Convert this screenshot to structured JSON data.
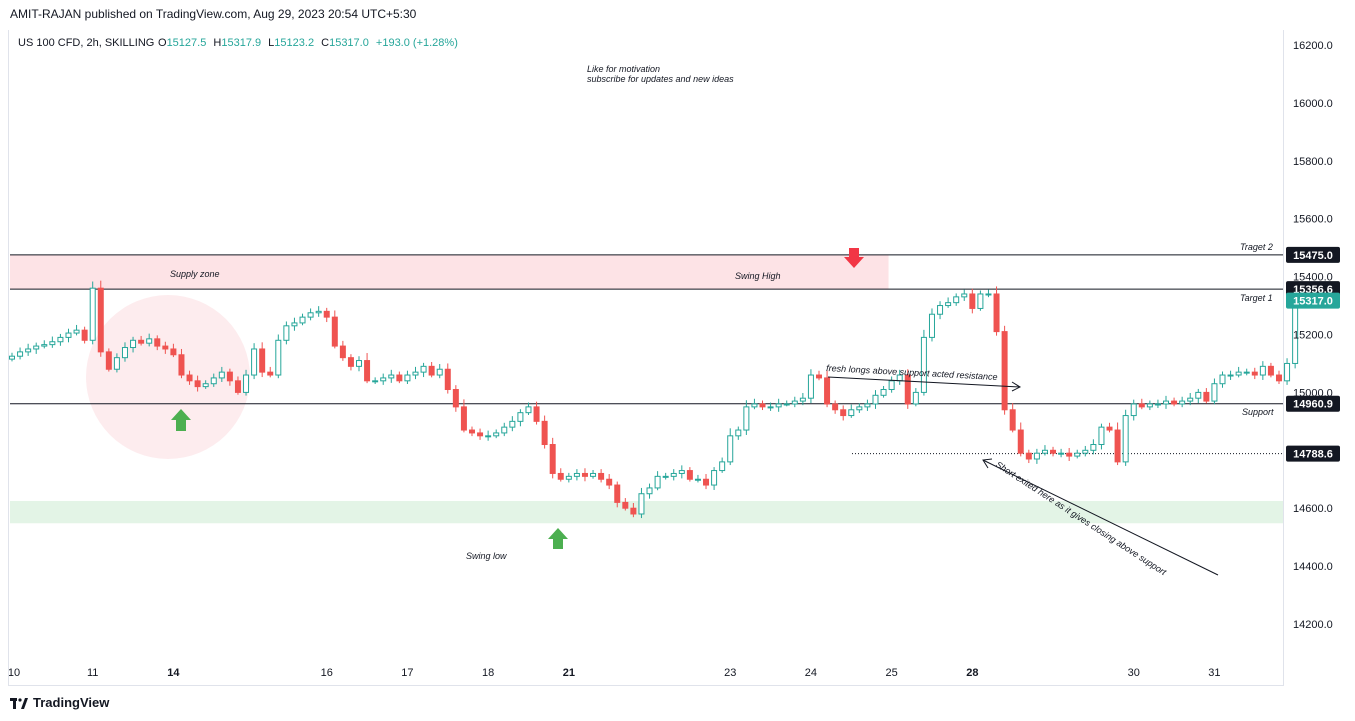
{
  "publisher": "AMIT-RAJAN published on TradingView.com, Aug 29, 2023 20:54 UTC+5:30",
  "brand": "TradingView",
  "colors": {
    "up": "#26a69a",
    "down": "#ef5350",
    "supply_zone": "#fde3e6",
    "demand_zone": "#e3f4e6",
    "arrow_green": "#4caf50",
    "arrow_red": "#f23645"
  },
  "chart_data": {
    "type": "candlestick",
    "symbol": "US 100 CFD, 2h, SKILLING",
    "ohlc_header": {
      "o_label": "O",
      "o": "15127.5",
      "h_label": "H",
      "h": "15317.9",
      "l_label": "L",
      "l": "15123.2",
      "c_label": "C",
      "c": "15317.0",
      "change": "+193.0 (+1.28%)"
    },
    "ylim": [
      14050,
      16250
    ],
    "y_ticks": [
      "16200.0",
      "16000.0",
      "15800.0",
      "15600.0",
      "15400.0",
      "15200.0",
      "15000.0",
      "14800.0",
      "14600.0",
      "14400.0",
      "14200.0"
    ],
    "y_tick_values": [
      16200,
      16000,
      15800,
      15600,
      15400,
      15200,
      15000,
      14800,
      14600,
      14400,
      14200
    ],
    "x_ticks": [
      {
        "label": "10",
        "i": 0
      },
      {
        "label": "11",
        "i": 10
      },
      {
        "label": "14",
        "i": 20
      },
      {
        "label": "16",
        "i": 39
      },
      {
        "label": "17",
        "i": 49
      },
      {
        "label": "18",
        "i": 59
      },
      {
        "label": "21",
        "i": 69
      },
      {
        "label": "23",
        "i": 89
      },
      {
        "label": "24",
        "i": 99
      },
      {
        "label": "25",
        "i": 109
      },
      {
        "label": "28",
        "i": 119
      },
      {
        "label": "30",
        "i": 139
      },
      {
        "label": "31",
        "i": 149
      }
    ],
    "total_slots": 155,
    "price_lines": [
      {
        "label": "15475.0",
        "value": 15475,
        "style": "solid"
      },
      {
        "label": "15356.6",
        "value": 15356.6,
        "style": "solid"
      },
      {
        "label": "14960.9",
        "value": 14960.9,
        "style": "solid"
      },
      {
        "label": "14788.6",
        "value": 14788.6,
        "style": "dotted"
      }
    ],
    "last_price": {
      "label": "15317.0",
      "value": 15317
    },
    "zones": [
      {
        "name": "supply",
        "from": 15356.6,
        "to": 15475,
        "i_end": 108
      },
      {
        "name": "demand",
        "from": 14548,
        "to": 14625,
        "i_end": 155
      }
    ],
    "closes": [
      15125,
      15140,
      15150,
      15160,
      15165,
      15175,
      15190,
      15205,
      15215,
      15180,
      15360,
      15140,
      15080,
      15120,
      15155,
      15180,
      15170,
      15185,
      15160,
      15150,
      15130,
      15060,
      15040,
      15020,
      15030,
      15050,
      15070,
      15040,
      15000,
      15060,
      15150,
      15070,
      15060,
      15180,
      15230,
      15240,
      15260,
      15275,
      15280,
      15260,
      15160,
      15120,
      15090,
      15110,
      15040,
      15040,
      15050,
      15060,
      15040,
      15060,
      15070,
      15090,
      15060,
      15080,
      15010,
      14950,
      14870,
      14860,
      14850,
      14850,
      14860,
      14880,
      14900,
      14930,
      14950,
      14900,
      14820,
      14720,
      14700,
      14710,
      14720,
      14710,
      14720,
      14700,
      14680,
      14620,
      14600,
      14580,
      14650,
      14670,
      14710,
      14710,
      14720,
      14730,
      14700,
      14700,
      14680,
      14730,
      14760,
      14850,
      14870,
      14950,
      14960,
      14950,
      14950,
      14960,
      14960,
      14970,
      14980,
      15060,
      15050,
      14960,
      14940,
      14920,
      14940,
      14950,
      14960,
      14990,
      15010,
      15040,
      15060,
      14960,
      15000,
      15190,
      15270,
      15300,
      15310,
      15330,
      15340,
      15290,
      15340,
      15340,
      15210,
      14940,
      14870,
      14790,
      14770,
      14790,
      14800,
      14790,
      14790,
      14780,
      14790,
      14800,
      14820,
      14880,
      14870,
      14760,
      14920,
      14960,
      14950,
      14960,
      14960,
      14970,
      14960,
      14970,
      14980,
      15000,
      14970,
      15030,
      15060,
      15060,
      15070,
      15070,
      15060,
      15090,
      15060,
      15040,
      15100,
      15317
    ],
    "annotations": [
      "Like for motivation",
      "subscribe for updates and new ideas",
      "Supply zone",
      "Swing High",
      "Traget 2",
      "Target 1",
      "Support",
      "Swing low",
      "fresh longs above support acted resistance",
      "Short exited here as it gives closing above support"
    ]
  }
}
